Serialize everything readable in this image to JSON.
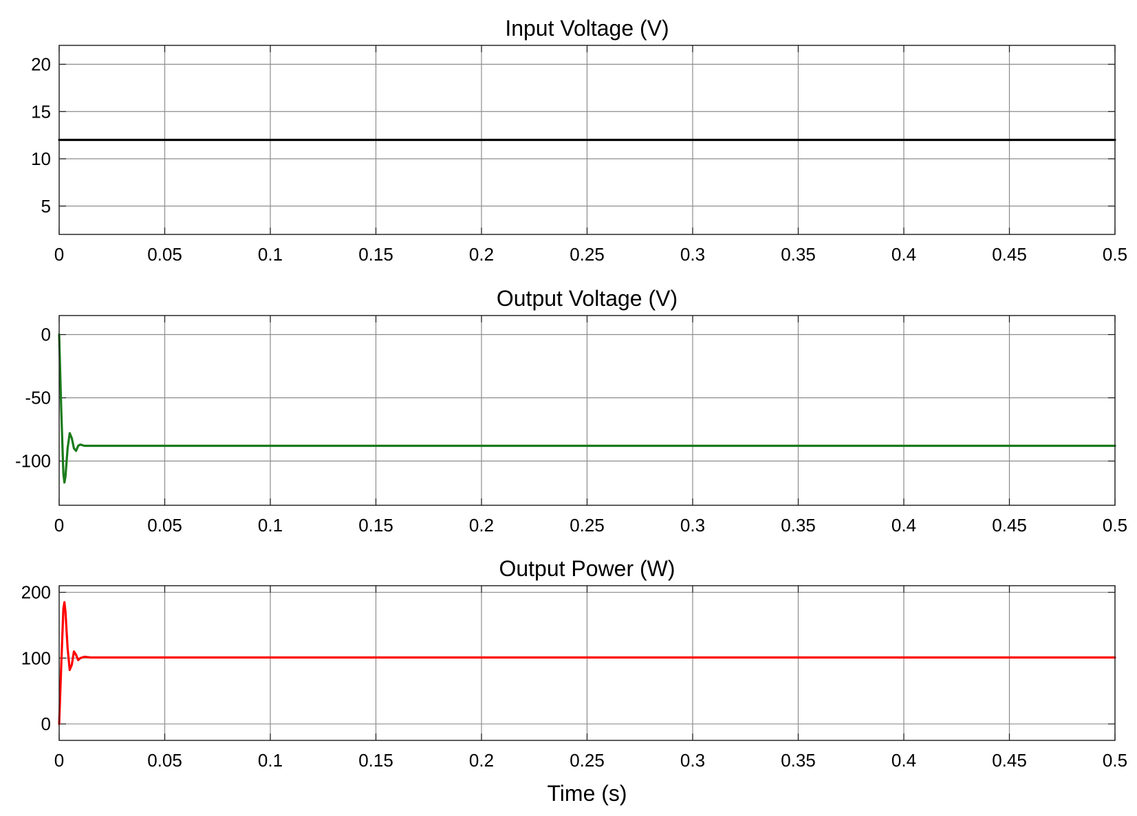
{
  "chart_data": [
    {
      "type": "line",
      "title": "Input Voltage (V)",
      "xlabel": "",
      "ylabel": "",
      "xlim": [
        0,
        0.5
      ],
      "ylim": [
        2,
        22
      ],
      "xticks": [
        0,
        0.05,
        0.1,
        0.15,
        0.2,
        0.25,
        0.3,
        0.35,
        0.4,
        0.45,
        0.5
      ],
      "xtick_labels": [
        "0",
        "0.05",
        "0.1",
        "0.15",
        "0.2",
        "0.25",
        "0.3",
        "0.35",
        "0.4",
        "0.45",
        "0.5"
      ],
      "yticks": [
        5,
        10,
        15,
        20
      ],
      "ytick_labels": [
        "5",
        "10",
        "15",
        "20"
      ],
      "grid": true,
      "series": [
        {
          "color": "#000000",
          "x": [
            0,
            0.5
          ],
          "y": [
            12,
            12
          ]
        }
      ]
    },
    {
      "type": "line",
      "title": "Output Voltage (V)",
      "xlabel": "",
      "ylabel": "",
      "xlim": [
        0,
        0.5
      ],
      "ylim": [
        -135,
        15
      ],
      "xticks": [
        0,
        0.05,
        0.1,
        0.15,
        0.2,
        0.25,
        0.3,
        0.35,
        0.4,
        0.45,
        0.5
      ],
      "xtick_labels": [
        "0",
        "0.05",
        "0.1",
        "0.15",
        "0.2",
        "0.25",
        "0.3",
        "0.35",
        "0.4",
        "0.45",
        "0.5"
      ],
      "yticks": [
        -100,
        -50,
        0
      ],
      "ytick_labels": [
        "-100",
        "-50",
        "0"
      ],
      "grid": true,
      "series": [
        {
          "color": "#1a7a1a",
          "x": [
            0,
            0.001,
            0.002,
            0.0025,
            0.003,
            0.004,
            0.005,
            0.006,
            0.007,
            0.008,
            0.009,
            0.01,
            0.012,
            0.015,
            0.02,
            0.05,
            0.1,
            0.15,
            0.2,
            0.25,
            0.3,
            0.35,
            0.4,
            0.45,
            0.5
          ],
          "y": [
            0,
            -60,
            -110,
            -117,
            -112,
            -90,
            -78,
            -82,
            -90,
            -92,
            -88,
            -87,
            -88,
            -88,
            -88,
            -88,
            -88,
            -88,
            -88,
            -88,
            -88,
            -88,
            -88,
            -88,
            -88
          ]
        }
      ]
    },
    {
      "type": "line",
      "title": "Output Power (W)",
      "xlabel": "Time (s)",
      "ylabel": "",
      "xlim": [
        0,
        0.5
      ],
      "ylim": [
        -25,
        210
      ],
      "xticks": [
        0,
        0.05,
        0.1,
        0.15,
        0.2,
        0.25,
        0.3,
        0.35,
        0.4,
        0.45,
        0.5
      ],
      "xtick_labels": [
        "0",
        "0.05",
        "0.1",
        "0.15",
        "0.2",
        "0.25",
        "0.3",
        "0.35",
        "0.4",
        "0.45",
        "0.5"
      ],
      "yticks": [
        0,
        100,
        200
      ],
      "ytick_labels": [
        "0",
        "100",
        "200"
      ],
      "grid": true,
      "series": [
        {
          "color": "#ff0000",
          "x": [
            0,
            0.001,
            0.002,
            0.0025,
            0.003,
            0.004,
            0.005,
            0.006,
            0.007,
            0.008,
            0.009,
            0.01,
            0.012,
            0.015,
            0.02,
            0.05,
            0.1,
            0.15,
            0.2,
            0.25,
            0.3,
            0.35,
            0.4,
            0.45,
            0.5
          ],
          "y": [
            0,
            90,
            175,
            185,
            170,
            115,
            82,
            90,
            110,
            105,
            97,
            100,
            102,
            101,
            101,
            101,
            101,
            101,
            101,
            101,
            101,
            101,
            101,
            101,
            101
          ]
        }
      ]
    }
  ]
}
